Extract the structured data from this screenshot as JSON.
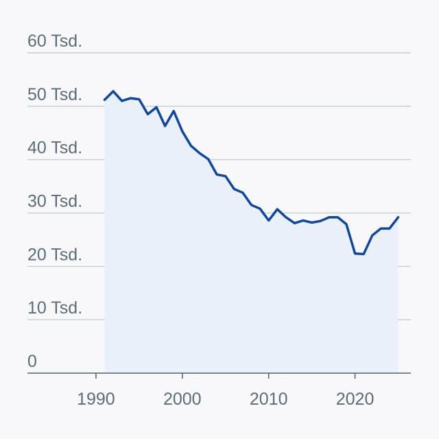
{
  "chart_data": {
    "type": "area",
    "title": "",
    "xlabel": "",
    "ylabel": "",
    "xlim": [
      1983,
      2026
    ],
    "ylim": [
      0,
      60000
    ],
    "grid": true,
    "legend": "none",
    "x_ticks": [
      1990,
      2000,
      2010,
      2020
    ],
    "x_tick_labels": [
      "1990",
      "2000",
      "2010",
      "2020"
    ],
    "y_ticks": [
      0,
      10000,
      20000,
      30000,
      40000,
      50000,
      60000
    ],
    "y_tick_labels": [
      "0",
      "10 Tsd.",
      "20 Tsd.",
      "30 Tsd.",
      "40 Tsd.",
      "50 Tsd.",
      "60 Tsd."
    ],
    "colors": {
      "line": "#0d47a1",
      "fill": "#e9f0fa",
      "grid": "#c8ced4",
      "axis": "#4d5f6a",
      "text": "#5b6d78"
    },
    "series": [
      {
        "x": [
          1991,
          1992,
          1993,
          1994,
          1995,
          1996,
          1997,
          1998,
          1999,
          2000,
          2001,
          2002,
          2003,
          2004,
          2005,
          2006,
          2007,
          2008,
          2009,
          2010,
          2011,
          2012,
          2013,
          2014,
          2015,
          2016,
          2017,
          2018,
          2019,
          2020,
          2021,
          2022,
          2023,
          2024,
          2025
        ],
        "values": [
          51200,
          52800,
          51000,
          51500,
          51300,
          48500,
          49800,
          46300,
          49100,
          45300,
          42600,
          41200,
          40100,
          37200,
          36900,
          34500,
          33800,
          31500,
          30800,
          28600,
          30700,
          29200,
          28100,
          28600,
          28200,
          28500,
          29200,
          29200,
          27900,
          22400,
          22300,
          25800,
          27100,
          27100,
          29200
        ]
      }
    ]
  }
}
